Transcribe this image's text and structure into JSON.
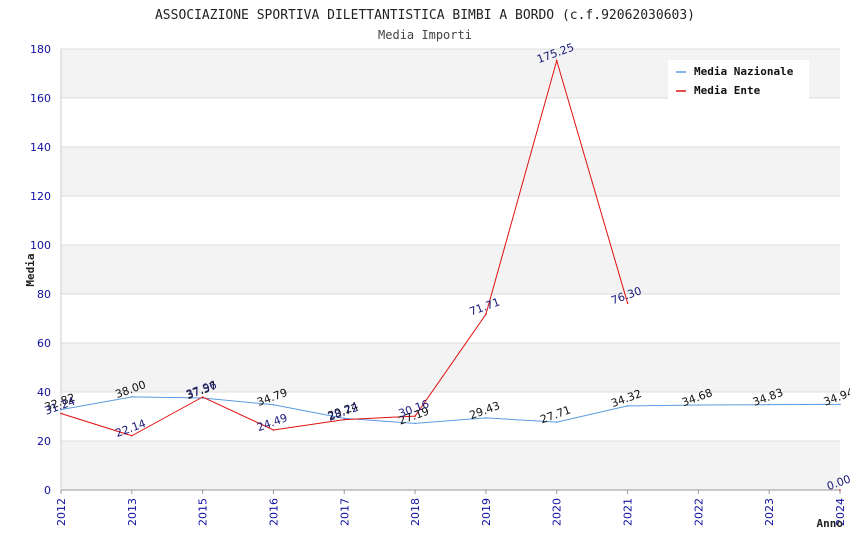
{
  "chart_data": {
    "type": "line",
    "title": "ASSOCIAZIONE SPORTIVA DILETTANTISTICA BIMBI A BORDO (c.f.92062030603)",
    "subtitle": "Media Importi",
    "xlabel": "Anno",
    "ylabel": "Media",
    "categories": [
      "2012",
      "2013",
      "2015",
      "2016",
      "2017",
      "2018",
      "2019",
      "2020",
      "2021",
      "2022",
      "2023",
      "2024"
    ],
    "ylim": [
      0,
      180
    ],
    "yticks": [
      0,
      20,
      40,
      60,
      80,
      100,
      120,
      140,
      160,
      180
    ],
    "grid": true,
    "legend_position": "top-right",
    "series": [
      {
        "name": "Media Nazionale",
        "color": "#5a9be0",
        "values": [
          32.82,
          38.0,
          37.57,
          34.79,
          29.24,
          27.19,
          29.43,
          27.71,
          34.32,
          34.68,
          34.83,
          34.94
        ],
        "labels": [
          "32.82",
          "38.00",
          "37.57",
          "34.79",
          "29.24",
          "27.19",
          "29.43",
          "27.71",
          "34.32",
          "34.68",
          "34.83",
          "34.94"
        ]
      },
      {
        "name": "Media Ente",
        "color": "#e01010",
        "values": [
          31.24,
          22.14,
          37.96,
          24.49,
          28.72,
          30.16,
          71.71,
          175.25,
          76.3,
          null,
          null,
          0.0
        ],
        "labels": [
          "31.24",
          "22.14",
          "37.96",
          "24.49",
          "28.72",
          "30.16",
          "71.71",
          "175.25",
          "76.30",
          null,
          null,
          "0.00"
        ]
      }
    ]
  }
}
